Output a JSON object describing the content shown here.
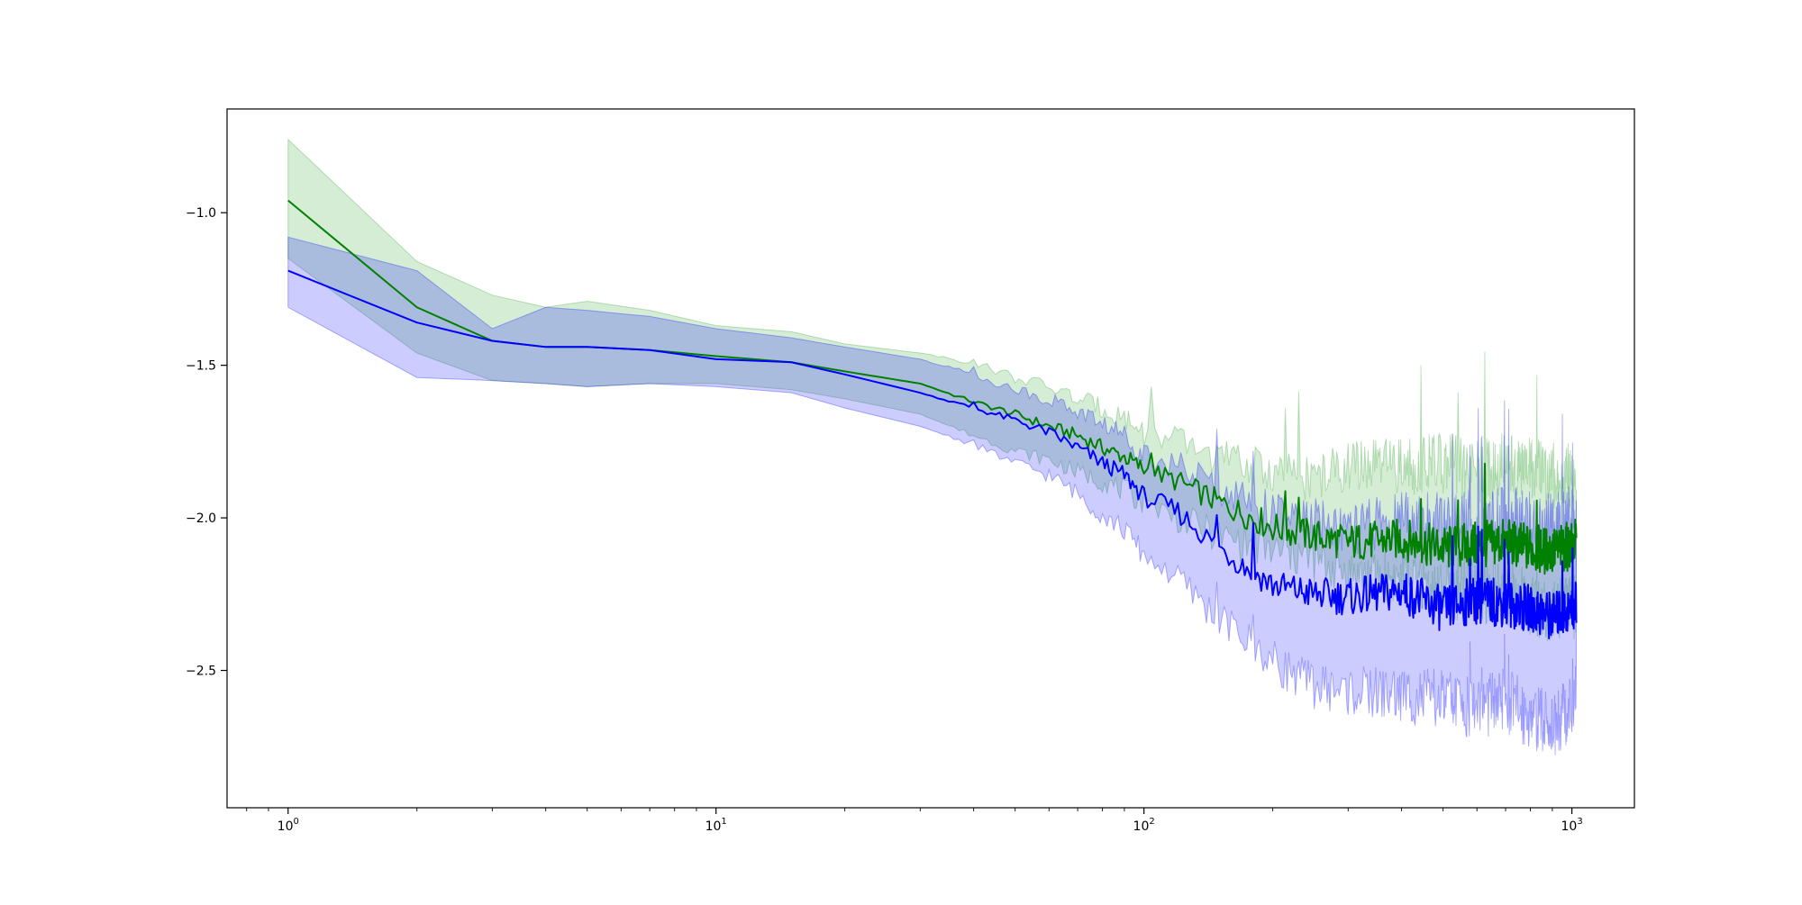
{
  "chart_data": {
    "type": "line",
    "title": "",
    "xlabel": "",
    "ylabel": "",
    "xscale": "log",
    "xlim": [
      0.72,
      1400
    ],
    "ylim": [
      -2.95,
      -0.66
    ],
    "grid": false,
    "legend": "none",
    "x_ticks": [
      {
        "value": 1,
        "base": "10",
        "exp": "0"
      },
      {
        "value": 10,
        "base": "10",
        "exp": "1"
      },
      {
        "value": 100,
        "base": "10",
        "exp": "2"
      },
      {
        "value": 1000,
        "base": "10",
        "exp": "3"
      }
    ],
    "y_ticks": [
      {
        "value": -1.0,
        "label": "−1.0"
      },
      {
        "value": -1.5,
        "label": "−1.5"
      },
      {
        "value": -2.0,
        "label": "−2.0"
      },
      {
        "value": -2.5,
        "label": "−2.5"
      }
    ],
    "x": [
      1,
      2,
      3,
      4,
      5,
      7,
      10,
      15,
      20,
      30,
      40,
      50,
      60,
      70,
      80,
      90,
      100,
      120,
      150,
      200,
      250,
      300,
      400,
      500,
      600,
      700,
      800,
      900,
      1000,
      1024
    ],
    "series": [
      {
        "color": "#008000",
        "band_color": "#2ca02c",
        "values": [
          -0.96,
          -1.31,
          -1.42,
          -1.44,
          -1.44,
          -1.45,
          -1.47,
          -1.49,
          -1.52,
          -1.56,
          -1.62,
          -1.66,
          -1.7,
          -1.73,
          -1.77,
          -1.8,
          -1.84,
          -1.88,
          -1.95,
          -2.03,
          -2.06,
          -2.08,
          -2.07,
          -2.1,
          -2.09,
          -2.08,
          -2.1,
          -2.11,
          -2.09,
          -2.08
        ],
        "lower": [
          -1.15,
          -1.46,
          -1.55,
          -1.56,
          -1.57,
          -1.56,
          -1.56,
          -1.58,
          -1.61,
          -1.66,
          -1.73,
          -1.78,
          -1.81,
          -1.85,
          -1.88,
          -1.91,
          -1.95,
          -2.0,
          -2.06,
          -2.11,
          -2.14,
          -2.18,
          -2.2,
          -2.24,
          -2.24,
          -2.24,
          -2.28,
          -2.3,
          -2.29,
          -2.29
        ],
        "upper": [
          -0.76,
          -1.16,
          -1.27,
          -1.31,
          -1.29,
          -1.32,
          -1.37,
          -1.39,
          -1.43,
          -1.46,
          -1.49,
          -1.54,
          -1.57,
          -1.61,
          -1.64,
          -1.67,
          -1.72,
          -1.75,
          -1.8,
          -1.85,
          -1.87,
          -1.83,
          -1.83,
          -1.82,
          -1.85,
          -1.82,
          -1.84,
          -1.86,
          -1.86,
          -1.85
        ]
      },
      {
        "color": "#0000ff",
        "band_color": "#0000ff",
        "values": [
          -1.19,
          -1.36,
          -1.42,
          -1.44,
          -1.44,
          -1.45,
          -1.48,
          -1.49,
          -1.53,
          -1.59,
          -1.64,
          -1.68,
          -1.72,
          -1.77,
          -1.82,
          -1.86,
          -1.93,
          -1.98,
          -2.1,
          -2.22,
          -2.25,
          -2.26,
          -2.24,
          -2.3,
          -2.27,
          -2.28,
          -2.3,
          -2.32,
          -2.3,
          -2.28
        ],
        "lower": [
          -1.31,
          -1.54,
          -1.55,
          -1.56,
          -1.57,
          -1.56,
          -1.57,
          -1.59,
          -1.64,
          -1.7,
          -1.76,
          -1.82,
          -1.86,
          -1.92,
          -1.99,
          -2.04,
          -2.12,
          -2.2,
          -2.33,
          -2.47,
          -2.55,
          -2.57,
          -2.58,
          -2.6,
          -2.62,
          -2.6,
          -2.65,
          -2.68,
          -2.62,
          -2.59
        ],
        "upper": [
          -1.08,
          -1.19,
          -1.38,
          -1.31,
          -1.32,
          -1.34,
          -1.38,
          -1.41,
          -1.44,
          -1.48,
          -1.53,
          -1.58,
          -1.61,
          -1.65,
          -1.69,
          -1.73,
          -1.79,
          -1.83,
          -1.9,
          -1.98,
          -2.01,
          -2.04,
          -2.0,
          -2.02,
          -2.01,
          -2.0,
          -2.02,
          -2.03,
          -2.0,
          -1.99
        ]
      }
    ]
  }
}
